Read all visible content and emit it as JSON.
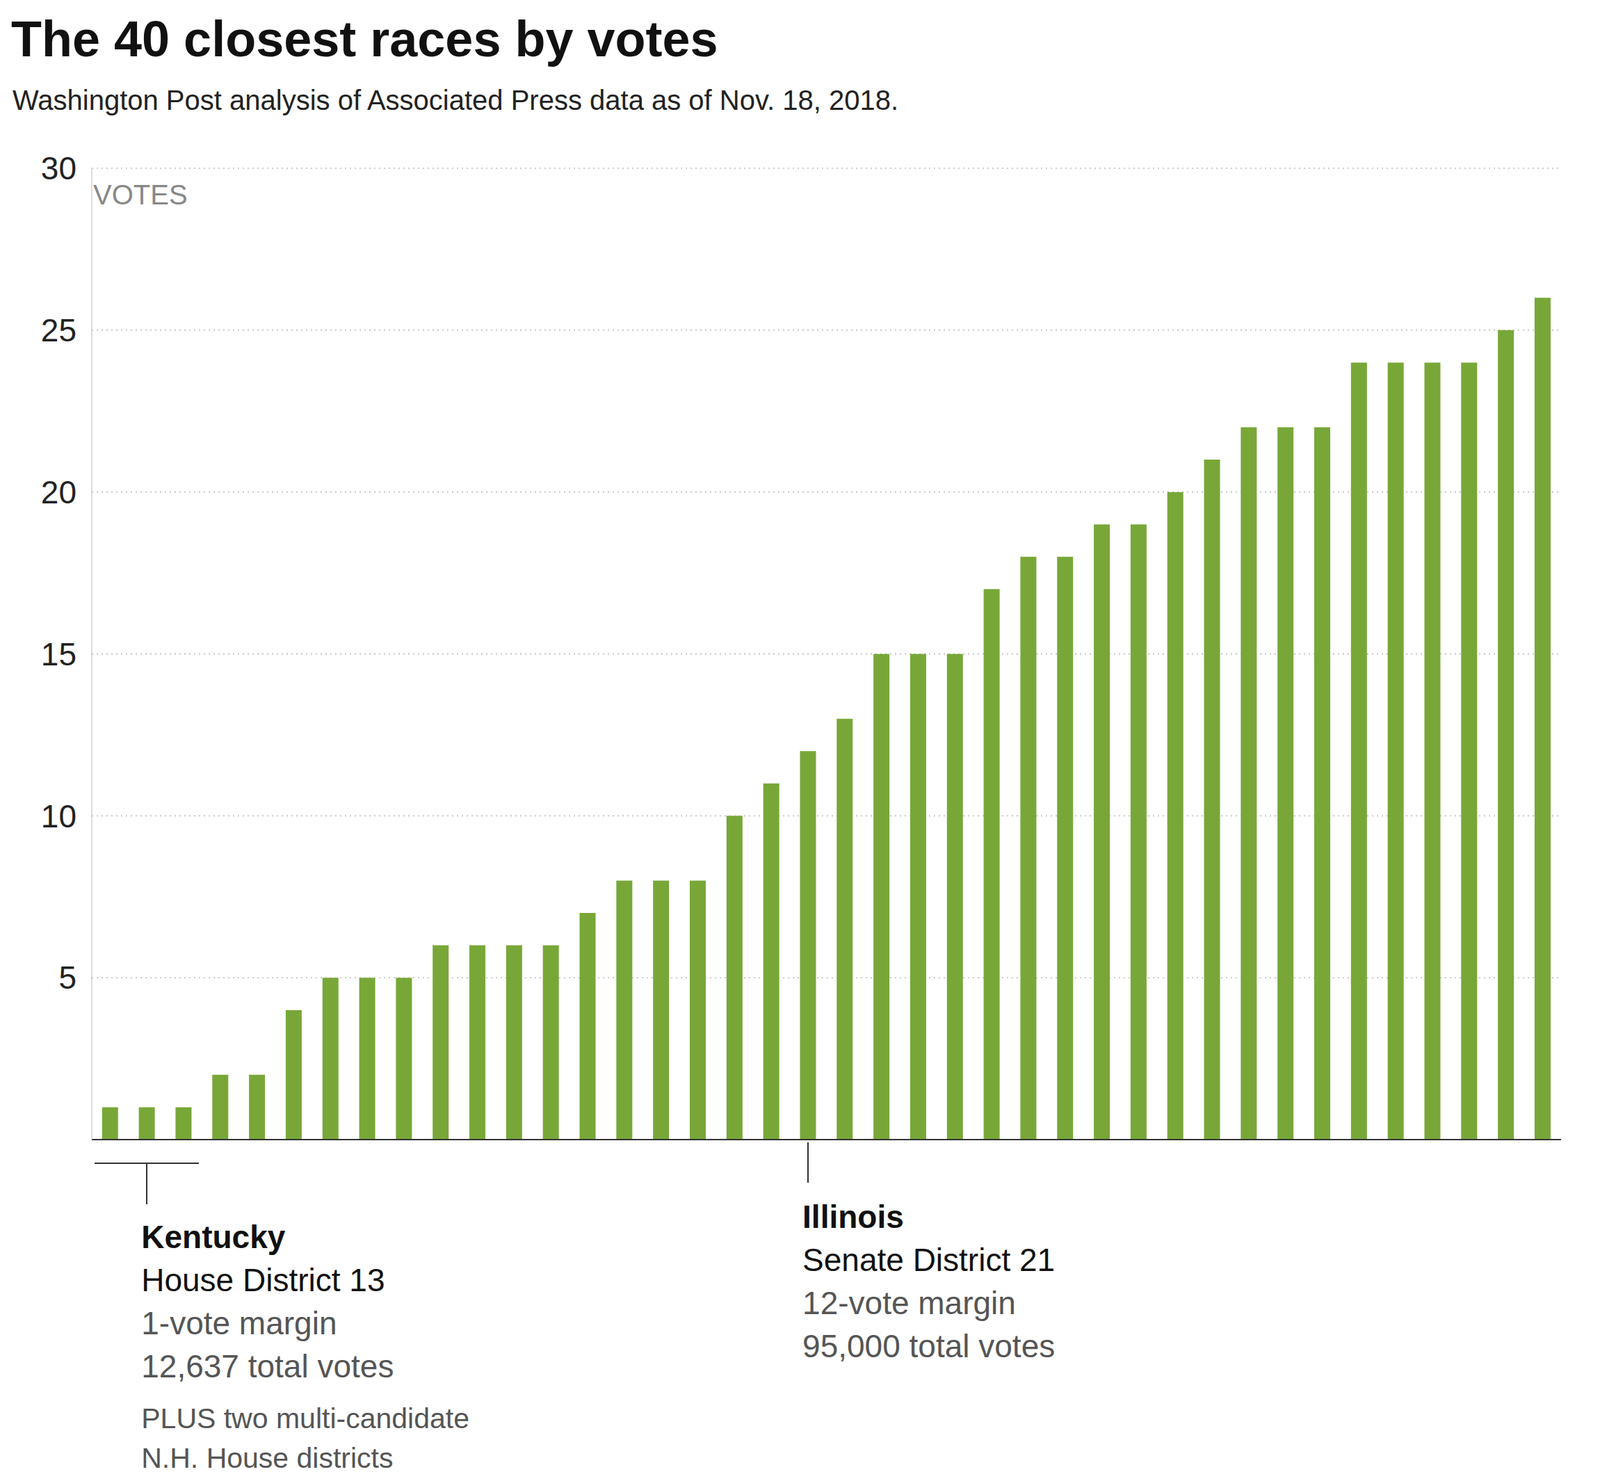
{
  "chart_data": {
    "type": "bar",
    "title": "The 40 closest races by votes",
    "subtitle": "Washington Post analysis of Associated Press data as of Nov. 18, 2018.",
    "y_label": "VOTES",
    "categories": [
      null,
      null,
      null,
      null,
      null,
      null,
      null,
      null,
      null,
      null,
      null,
      null,
      null,
      null,
      null,
      null,
      null,
      null,
      null,
      null,
      null,
      null,
      null,
      null,
      null,
      null,
      null,
      null,
      null,
      null,
      null,
      null,
      null,
      null,
      null,
      null,
      null,
      null,
      null,
      null
    ],
    "values": [
      1,
      1,
      1,
      2,
      2,
      4,
      5,
      5,
      5,
      6,
      6,
      6,
      6,
      7,
      8,
      8,
      8,
      10,
      11,
      12,
      13,
      15,
      15,
      15,
      17,
      18,
      18,
      19,
      19,
      20,
      21,
      22,
      22,
      22,
      24,
      24,
      24,
      24,
      25,
      26
    ],
    "color": "#78a738",
    "ylim": [
      0,
      30
    ],
    "yticks": [
      5,
      10,
      15,
      20,
      25,
      30
    ],
    "grid": true,
    "tick_labels": "y",
    "annotations": [
      {
        "title": "Kentucky",
        "lines": [
          "House District 13",
          "1-vote margin",
          "12,637 total votes"
        ],
        "note": [
          "PLUS two multi-candidate",
          "N.H. House districts"
        ]
      },
      {
        "title": "Illinois",
        "lines": [
          "Senate District 21",
          "12-vote margin",
          "95,000 total votes"
        ]
      }
    ]
  }
}
